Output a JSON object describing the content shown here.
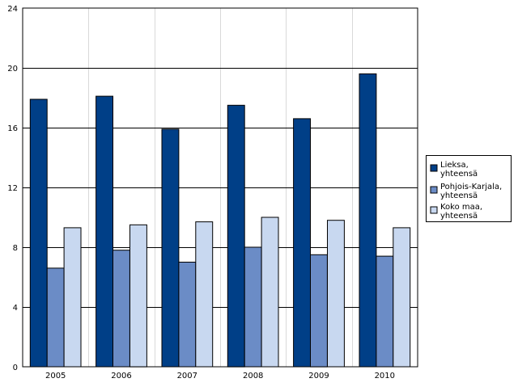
{
  "chart_data": {
    "type": "bar",
    "categories": [
      "2005",
      "2006",
      "2007",
      "2008",
      "2009",
      "2010"
    ],
    "series": [
      {
        "name": "Lieksa, yhteensä",
        "values": [
          17.9,
          18.1,
          15.9,
          17.5,
          16.6,
          19.6
        ],
        "color": "#003f87"
      },
      {
        "name": "Pohjois-Karjala, yhteensä",
        "values": [
          6.6,
          7.8,
          7.0,
          8.0,
          7.5,
          7.4
        ],
        "color": "#6b8cc6"
      },
      {
        "name": "Koko maa, yhteensä",
        "values": [
          9.3,
          9.5,
          9.7,
          10.0,
          9.8,
          9.3
        ],
        "color": "#c8d8f0"
      }
    ],
    "yticks": [
      "0",
      "4",
      "8",
      "12",
      "16",
      "20",
      "24"
    ],
    "ylim": [
      0,
      24
    ],
    "grid": true,
    "legend": "right"
  }
}
